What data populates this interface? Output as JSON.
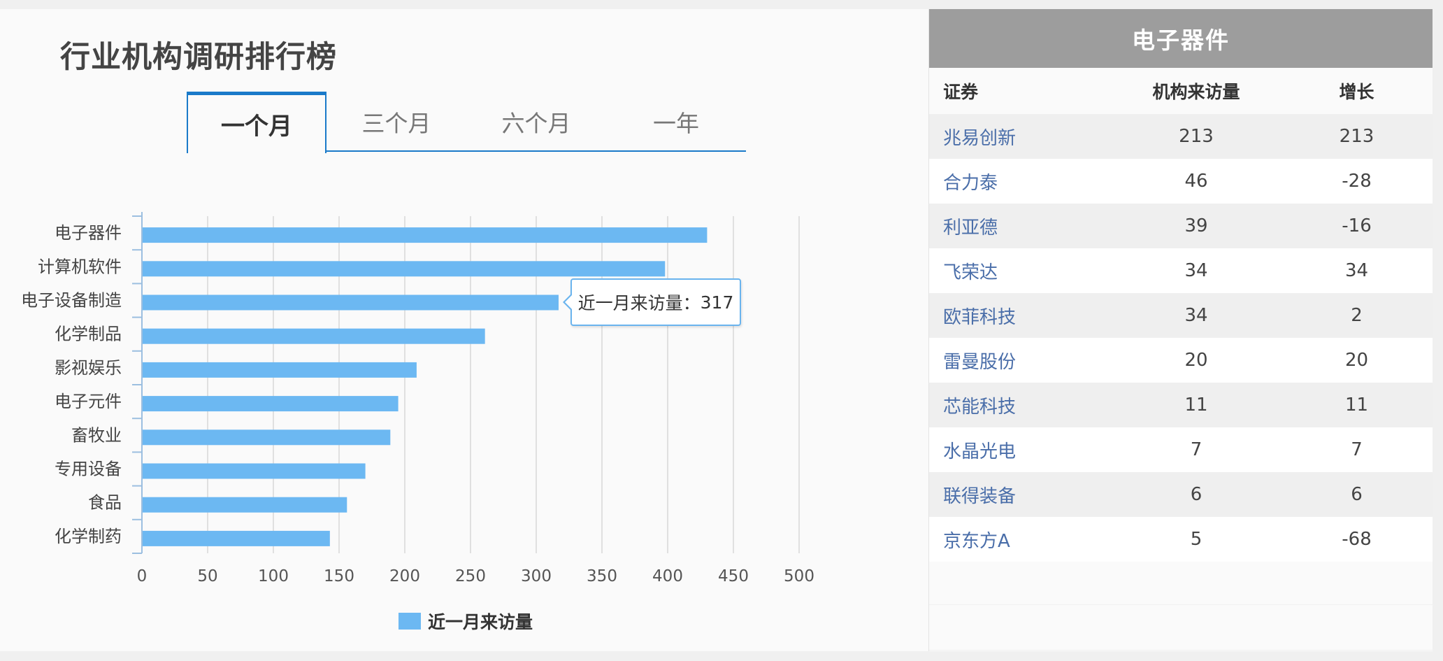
{
  "left": {
    "title": "行业机构调研排行榜",
    "tabs": [
      {
        "label": "一个月",
        "active": true
      },
      {
        "label": "三个月",
        "active": false
      },
      {
        "label": "六个月",
        "active": false
      },
      {
        "label": "一年",
        "active": false
      }
    ],
    "tooltip": {
      "label": "近一月来访量：",
      "value": "317"
    },
    "legend": {
      "label": "近一月来访量"
    }
  },
  "chart_data": {
    "type": "bar",
    "orientation": "horizontal",
    "categories": [
      "电子器件",
      "计算机软件",
      "电子设备制造",
      "化学制品",
      "影视娱乐",
      "电子元件",
      "畜牧业",
      "专用设备",
      "食品",
      "化学制药"
    ],
    "series": [
      {
        "name": "近一月来访量",
        "values": [
          430,
          398,
          317,
          261,
          209,
          195,
          189,
          170,
          156,
          143
        ]
      }
    ],
    "xlim": [
      0,
      500
    ],
    "xticks": [
      0,
      50,
      100,
      150,
      200,
      250,
      300,
      350,
      400,
      450,
      500
    ],
    "grid": true,
    "legend_position": "bottom",
    "bar_color": "#6cb8f2"
  },
  "right": {
    "title": "电子器件",
    "columns": [
      "证券",
      "机构来访量",
      "增长"
    ],
    "rows": [
      {
        "name": "兆易创新",
        "visits": "213",
        "growth": "213"
      },
      {
        "name": "合力泰",
        "visits": "46",
        "growth": "-28"
      },
      {
        "name": "利亚德",
        "visits": "39",
        "growth": "-16"
      },
      {
        "name": "飞荣达",
        "visits": "34",
        "growth": "34"
      },
      {
        "name": "欧菲科技",
        "visits": "34",
        "growth": "2"
      },
      {
        "name": "雷曼股份",
        "visits": "20",
        "growth": "20"
      },
      {
        "name": "芯能科技",
        "visits": "11",
        "growth": "11"
      },
      {
        "name": "水晶光电",
        "visits": "7",
        "growth": "7"
      },
      {
        "name": "联得装备",
        "visits": "6",
        "growth": "6"
      },
      {
        "name": "京东方A",
        "visits": "5",
        "growth": "-68"
      }
    ]
  }
}
